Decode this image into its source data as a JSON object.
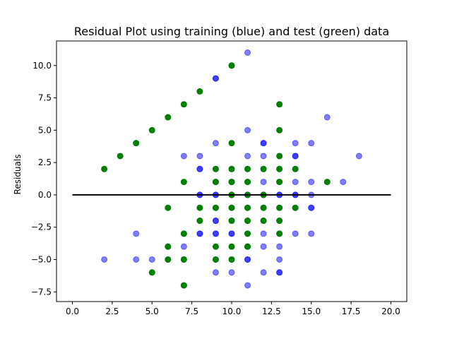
{
  "chart_data": {
    "type": "scatter",
    "title": "Residual Plot using training (blue) and test (green) data",
    "xlabel": "",
    "ylabel": "Residuals",
    "xlim": [
      -1,
      21
    ],
    "ylim": [
      -8.25,
      11.9
    ],
    "xticks": [
      0.0,
      2.5,
      5.0,
      7.5,
      10.0,
      12.5,
      15.0,
      17.5,
      20.0
    ],
    "xtick_labels": [
      "0.0",
      "2.5",
      "5.0",
      "7.5",
      "10.0",
      "12.5",
      "15.0",
      "17.5",
      "20.0"
    ],
    "yticks": [
      -7.5,
      -5.0,
      -2.5,
      0.0,
      2.5,
      5.0,
      7.5,
      10.0
    ],
    "ytick_labels": [
      "−7.5",
      "−5.0",
      "−2.5",
      "0.0",
      "2.5",
      "5.0",
      "7.5",
      "10.0"
    ],
    "grid": false,
    "hline": {
      "y": 0,
      "x": [
        0,
        20
      ],
      "color": "#000000"
    },
    "series": [
      {
        "color": "#0000ff",
        "alpha": 0.5,
        "points": [
          [
            2,
            -5
          ],
          [
            4,
            4
          ],
          [
            4,
            -3
          ],
          [
            4,
            -5
          ],
          [
            5,
            -5
          ],
          [
            6,
            -4
          ],
          [
            6,
            -5
          ],
          [
            7,
            3
          ],
          [
            7,
            -3
          ],
          [
            7,
            -4
          ],
          [
            7,
            -5
          ],
          [
            7,
            -7
          ],
          [
            8,
            3
          ],
          [
            8,
            2
          ],
          [
            8,
            2
          ],
          [
            8,
            0
          ],
          [
            8,
            0
          ],
          [
            8,
            -2
          ],
          [
            8,
            -3
          ],
          [
            8,
            -3
          ],
          [
            9,
            9
          ],
          [
            9,
            9
          ],
          [
            9,
            4
          ],
          [
            9,
            2
          ],
          [
            9,
            1
          ],
          [
            9,
            0
          ],
          [
            9,
            0
          ],
          [
            9,
            -1
          ],
          [
            9,
            -2
          ],
          [
            9,
            -2
          ],
          [
            9,
            -3
          ],
          [
            9,
            -3
          ],
          [
            9,
            -5
          ],
          [
            9,
            -6
          ],
          [
            10,
            10
          ],
          [
            10,
            2
          ],
          [
            10,
            1
          ],
          [
            10,
            1
          ],
          [
            10,
            0
          ],
          [
            10,
            0
          ],
          [
            10,
            -1
          ],
          [
            10,
            -2
          ],
          [
            10,
            -3
          ],
          [
            10,
            -3
          ],
          [
            10,
            -5
          ],
          [
            10,
            -6
          ],
          [
            11,
            11
          ],
          [
            11,
            5
          ],
          [
            11,
            3
          ],
          [
            11,
            2
          ],
          [
            11,
            1
          ],
          [
            11,
            0
          ],
          [
            11,
            0
          ],
          [
            11,
            -1
          ],
          [
            11,
            -2
          ],
          [
            11,
            -3
          ],
          [
            11,
            -4
          ],
          [
            11,
            -4
          ],
          [
            11,
            -5
          ],
          [
            11,
            -5
          ],
          [
            11,
            -7
          ],
          [
            12,
            4
          ],
          [
            12,
            4
          ],
          [
            12,
            3
          ],
          [
            12,
            2
          ],
          [
            12,
            1
          ],
          [
            12,
            0
          ],
          [
            12,
            0
          ],
          [
            12,
            -1
          ],
          [
            12,
            -2
          ],
          [
            12,
            -3
          ],
          [
            12,
            -4
          ],
          [
            12,
            -6
          ],
          [
            13,
            3
          ],
          [
            13,
            2
          ],
          [
            13,
            1
          ],
          [
            13,
            0
          ],
          [
            13,
            0
          ],
          [
            13,
            -1
          ],
          [
            13,
            -2
          ],
          [
            13,
            -3
          ],
          [
            13,
            -4
          ],
          [
            13,
            -5
          ],
          [
            13,
            -6
          ],
          [
            13,
            -6
          ],
          [
            14,
            4
          ],
          [
            14,
            3
          ],
          [
            14,
            3
          ],
          [
            14,
            2
          ],
          [
            14,
            1
          ],
          [
            14,
            0
          ],
          [
            14,
            0
          ],
          [
            14,
            -1
          ],
          [
            14,
            -3
          ],
          [
            15,
            4
          ],
          [
            15,
            1
          ],
          [
            15,
            0
          ],
          [
            15,
            -1
          ],
          [
            15,
            -1
          ],
          [
            15,
            -3
          ],
          [
            16,
            6
          ],
          [
            17,
            1
          ],
          [
            18,
            3
          ]
        ]
      },
      {
        "color": "#008000",
        "alpha": 1.0,
        "points": [
          [
            2,
            2
          ],
          [
            3,
            3
          ],
          [
            4,
            4
          ],
          [
            5,
            5
          ],
          [
            5,
            -6
          ],
          [
            6,
            6
          ],
          [
            6,
            -1
          ],
          [
            6,
            -4
          ],
          [
            6,
            -5
          ],
          [
            7,
            7
          ],
          [
            7,
            1
          ],
          [
            7,
            -3
          ],
          [
            7,
            -5
          ],
          [
            7,
            -7
          ],
          [
            8,
            8
          ],
          [
            8,
            -1
          ],
          [
            8,
            -2
          ],
          [
            9,
            2
          ],
          [
            9,
            1
          ],
          [
            9,
            -1
          ],
          [
            9,
            -4
          ],
          [
            9,
            -5
          ],
          [
            10,
            10
          ],
          [
            10,
            4
          ],
          [
            10,
            2
          ],
          [
            10,
            1
          ],
          [
            10,
            0
          ],
          [
            10,
            -1
          ],
          [
            10,
            -2
          ],
          [
            10,
            -4
          ],
          [
            10,
            -5
          ],
          [
            11,
            2
          ],
          [
            11,
            1
          ],
          [
            11,
            0
          ],
          [
            11,
            -1
          ],
          [
            11,
            -2
          ],
          [
            11,
            -3
          ],
          [
            11,
            -4
          ],
          [
            12,
            2
          ],
          [
            12,
            0
          ],
          [
            12,
            -1
          ],
          [
            12,
            -2
          ],
          [
            13,
            7
          ],
          [
            13,
            5
          ],
          [
            13,
            3
          ],
          [
            13,
            2
          ],
          [
            13,
            1
          ],
          [
            13,
            -1
          ],
          [
            13,
            -2
          ],
          [
            13,
            -3
          ],
          [
            14,
            2
          ],
          [
            14,
            -1
          ],
          [
            16,
            1
          ]
        ]
      }
    ]
  }
}
